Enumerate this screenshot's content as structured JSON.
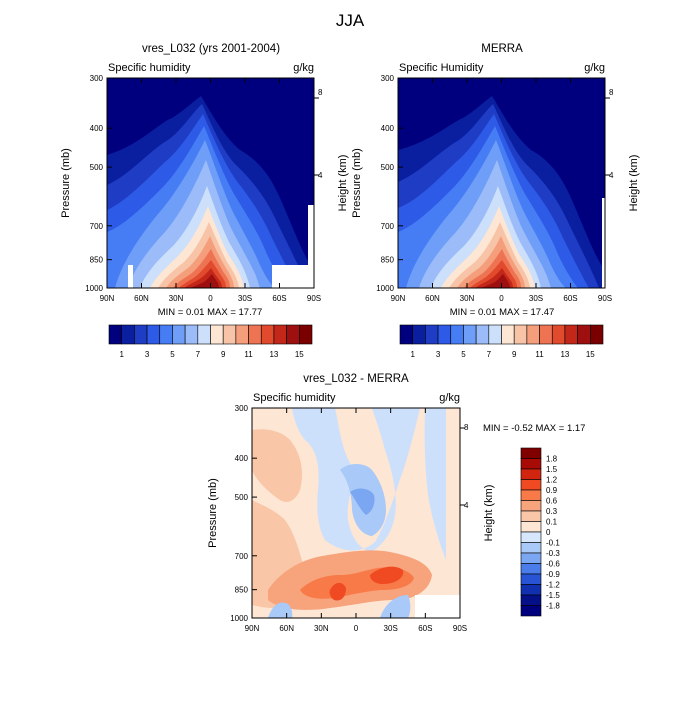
{
  "figure": {
    "title": "JJA"
  },
  "chart_data": [
    {
      "type": "heatmap",
      "title": "vres_L032 (yrs 2001-2004)",
      "left_label": "Specific humidity",
      "units": "g/kg",
      "ylabel": "Pressure (mb)",
      "ylabel_right": "Height (km)",
      "xticks": [
        "90N",
        "60N",
        "30N",
        "0",
        "30S",
        "60S",
        "90S"
      ],
      "yticks": [
        "300",
        "400",
        "500",
        "700",
        "850",
        "1000"
      ],
      "yticks_right": [
        "8",
        "4"
      ],
      "minmax": "MIN =   0.01   MAX =  17.77",
      "x": [
        90,
        -90
      ],
      "y_pressure": [
        300,
        1000
      ],
      "min": 0.01,
      "max": 17.77,
      "colorbar": {
        "labels": [
          "1",
          "3",
          "5",
          "7",
          "9",
          "11",
          "13",
          "15"
        ]
      }
    },
    {
      "type": "heatmap",
      "title": "MERRA",
      "left_label": "Specific Humidity",
      "units": "g/kg",
      "ylabel": "Pressure (mb)",
      "ylabel_right": "Height (km)",
      "xticks": [
        "90N",
        "60N",
        "30N",
        "0",
        "30S",
        "60S",
        "90S"
      ],
      "yticks": [
        "300",
        "400",
        "500",
        "700",
        "850",
        "1000"
      ],
      "yticks_right": [
        "8",
        "4"
      ],
      "minmax": "MIN =   0.01   MAX =  17.47",
      "x": [
        90,
        -90
      ],
      "y_pressure": [
        300,
        1000
      ],
      "min": 0.01,
      "max": 17.47,
      "colorbar": {
        "labels": [
          "1",
          "3",
          "5",
          "7",
          "9",
          "11",
          "13",
          "15"
        ]
      }
    },
    {
      "type": "heatmap",
      "title": "vres_L032 - MERRA",
      "left_label": "Specific humidity",
      "units": "g/kg",
      "ylabel": "Pressure (mb)",
      "ylabel_right": "Height (km)",
      "xticks": [
        "90N",
        "60N",
        "30N",
        "0",
        "30S",
        "60S",
        "90S"
      ],
      "yticks": [
        "300",
        "400",
        "500",
        "700",
        "850",
        "1000"
      ],
      "yticks_right": [
        "8",
        "4"
      ],
      "minmax": "MIN =  -0.52  MAX =   1.17",
      "x": [
        90,
        -90
      ],
      "y_pressure": [
        300,
        1000
      ],
      "min": -0.52,
      "max": 1.17,
      "colorbar": {
        "labels": [
          "1.8",
          "1.5",
          "1.2",
          "0.9",
          "0.6",
          "0.3",
          "0.1",
          "0",
          "-0.1",
          "-0.3",
          "-0.6",
          "-0.9",
          "-1.2",
          "-1.5",
          "-1.8"
        ]
      }
    }
  ],
  "colors": {
    "seq": [
      "#00007f",
      "#0a1ea0",
      "#1e3cc4",
      "#2d5ae6",
      "#467df5",
      "#6e9ef8",
      "#9cbcf9",
      "#cde0fb",
      "#fde6d4",
      "#f8c4a8",
      "#f49e7c",
      "#ee7352",
      "#e14a2c",
      "#c2271a",
      "#9e1010",
      "#7a0000"
    ],
    "div": [
      "#800000",
      "#a80a05",
      "#d2250f",
      "#f04a22",
      "#f77a48",
      "#f7a37c",
      "#f9c6a8",
      "#fde6d4",
      "#d6e6fb",
      "#a9c9f8",
      "#7ba6f2",
      "#4a7cea",
      "#2753d4",
      "#1030b0",
      "#040f88",
      "#00007f"
    ]
  }
}
